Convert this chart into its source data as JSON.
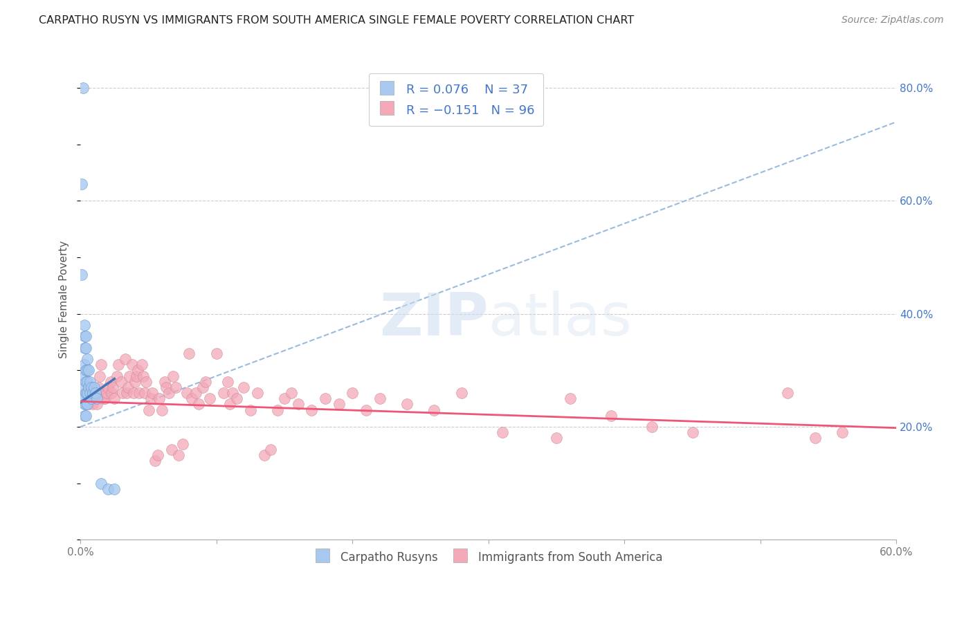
{
  "title": "CARPATHO RUSYN VS IMMIGRANTS FROM SOUTH AMERICA SINGLE FEMALE POVERTY CORRELATION CHART",
  "source": "Source: ZipAtlas.com",
  "ylabel": "Single Female Poverty",
  "legend_label1": "Carpatho Rusyns",
  "legend_label2": "Immigrants from South America",
  "x_min": 0.0,
  "x_max": 0.6,
  "y_min": 0.0,
  "y_max": 0.85,
  "y_ticks": [
    0.2,
    0.4,
    0.6,
    0.8
  ],
  "y_tick_labels": [
    "20.0%",
    "40.0%",
    "60.0%",
    "80.0%"
  ],
  "blue_color": "#a8c8f0",
  "blue_edge_color": "#6699cc",
  "pink_color": "#f4a8b8",
  "pink_edge_color": "#cc8899",
  "blue_line_color": "#4477bb",
  "pink_line_color": "#ee5577",
  "dashed_line_color": "#99bbdd",
  "grid_color": "#cccccc",
  "right_tick_color": "#4477cc",
  "watermark_color": "#ccddf0",
  "carpatho_x": [
    0.002,
    0.001,
    0.001,
    0.003,
    0.003,
    0.003,
    0.003,
    0.003,
    0.003,
    0.003,
    0.003,
    0.003,
    0.004,
    0.004,
    0.004,
    0.004,
    0.004,
    0.004,
    0.004,
    0.005,
    0.005,
    0.005,
    0.005,
    0.005,
    0.006,
    0.006,
    0.007,
    0.007,
    0.008,
    0.008,
    0.009,
    0.01,
    0.011,
    0.012,
    0.015,
    0.02,
    0.025
  ],
  "carpatho_y": [
    0.8,
    0.63,
    0.47,
    0.38,
    0.36,
    0.34,
    0.31,
    0.29,
    0.27,
    0.25,
    0.24,
    0.22,
    0.36,
    0.34,
    0.3,
    0.28,
    0.26,
    0.24,
    0.22,
    0.32,
    0.3,
    0.28,
    0.26,
    0.24,
    0.3,
    0.27,
    0.28,
    0.26,
    0.27,
    0.25,
    0.26,
    0.27,
    0.26,
    0.25,
    0.1,
    0.09,
    0.09
  ],
  "south_america_x": [
    0.004,
    0.005,
    0.006,
    0.007,
    0.008,
    0.009,
    0.01,
    0.011,
    0.012,
    0.013,
    0.014,
    0.015,
    0.016,
    0.017,
    0.018,
    0.019,
    0.02,
    0.022,
    0.023,
    0.024,
    0.025,
    0.027,
    0.028,
    0.03,
    0.031,
    0.033,
    0.034,
    0.035,
    0.036,
    0.038,
    0.039,
    0.04,
    0.041,
    0.042,
    0.043,
    0.045,
    0.046,
    0.047,
    0.048,
    0.05,
    0.052,
    0.053,
    0.055,
    0.057,
    0.058,
    0.06,
    0.062,
    0.063,
    0.065,
    0.067,
    0.068,
    0.07,
    0.072,
    0.075,
    0.078,
    0.08,
    0.082,
    0.085,
    0.087,
    0.09,
    0.092,
    0.095,
    0.1,
    0.105,
    0.108,
    0.11,
    0.112,
    0.115,
    0.12,
    0.125,
    0.13,
    0.135,
    0.14,
    0.145,
    0.15,
    0.155,
    0.16,
    0.17,
    0.18,
    0.19,
    0.2,
    0.21,
    0.22,
    0.24,
    0.26,
    0.28,
    0.31,
    0.35,
    0.36,
    0.39,
    0.42,
    0.45,
    0.52,
    0.54,
    0.56
  ],
  "south_america_y": [
    0.26,
    0.25,
    0.24,
    0.25,
    0.27,
    0.24,
    0.26,
    0.25,
    0.24,
    0.27,
    0.29,
    0.31,
    0.26,
    0.25,
    0.25,
    0.26,
    0.27,
    0.28,
    0.26,
    0.27,
    0.25,
    0.29,
    0.31,
    0.28,
    0.26,
    0.32,
    0.26,
    0.27,
    0.29,
    0.31,
    0.26,
    0.28,
    0.29,
    0.3,
    0.26,
    0.31,
    0.29,
    0.26,
    0.28,
    0.23,
    0.25,
    0.26,
    0.14,
    0.15,
    0.25,
    0.23,
    0.28,
    0.27,
    0.26,
    0.16,
    0.29,
    0.27,
    0.15,
    0.17,
    0.26,
    0.33,
    0.25,
    0.26,
    0.24,
    0.27,
    0.28,
    0.25,
    0.33,
    0.26,
    0.28,
    0.24,
    0.26,
    0.25,
    0.27,
    0.23,
    0.26,
    0.15,
    0.16,
    0.23,
    0.25,
    0.26,
    0.24,
    0.23,
    0.25,
    0.24,
    0.26,
    0.23,
    0.25,
    0.24,
    0.23,
    0.26,
    0.19,
    0.18,
    0.25,
    0.22,
    0.2,
    0.19,
    0.26,
    0.18,
    0.19
  ],
  "blue_line_x": [
    0.0,
    0.025
  ],
  "blue_line_y": [
    0.243,
    0.285
  ],
  "pink_line_x": [
    0.0,
    0.6
  ],
  "pink_line_y": [
    0.245,
    0.198
  ],
  "dash_line_x": [
    0.0,
    0.6
  ],
  "dash_line_y": [
    0.2,
    0.74
  ]
}
